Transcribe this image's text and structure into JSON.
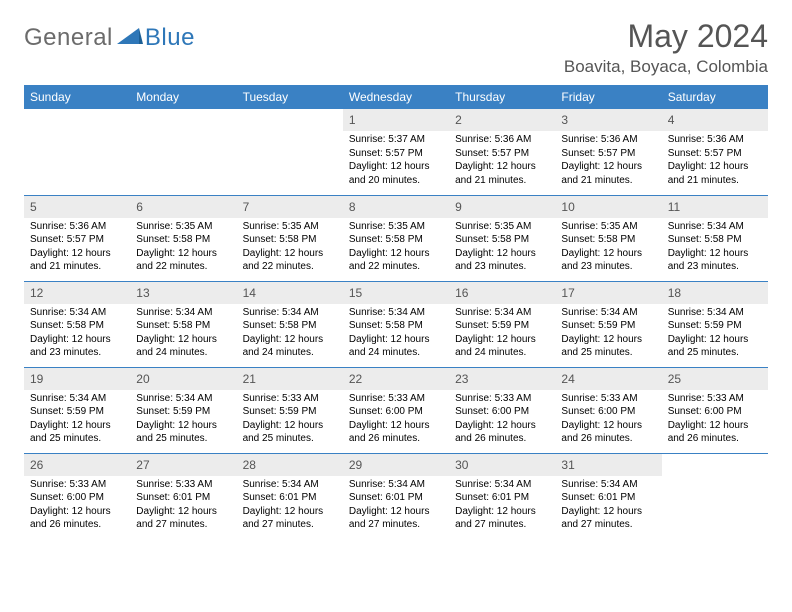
{
  "brand": {
    "general": "General",
    "blue": "Blue"
  },
  "title": "May 2024",
  "location": "Boavita, Boyaca, Colombia",
  "theme": {
    "header_bg": "#3a81c4",
    "header_text": "#ffffff",
    "daynum_bg": "#ececec",
    "daynum_text": "#555555",
    "rule_color": "#3a81c4",
    "title_color": "#555555",
    "logo_general_color": "#6b6b6b",
    "logo_blue_color": "#2e77b8"
  },
  "weekdays": [
    "Sunday",
    "Monday",
    "Tuesday",
    "Wednesday",
    "Thursday",
    "Friday",
    "Saturday"
  ],
  "weeks": [
    [
      null,
      null,
      null,
      {
        "n": "1",
        "sr": "5:37 AM",
        "ss": "5:57 PM",
        "dl": "12 hours and 20 minutes."
      },
      {
        "n": "2",
        "sr": "5:36 AM",
        "ss": "5:57 PM",
        "dl": "12 hours and 21 minutes."
      },
      {
        "n": "3",
        "sr": "5:36 AM",
        "ss": "5:57 PM",
        "dl": "12 hours and 21 minutes."
      },
      {
        "n": "4",
        "sr": "5:36 AM",
        "ss": "5:57 PM",
        "dl": "12 hours and 21 minutes."
      }
    ],
    [
      {
        "n": "5",
        "sr": "5:36 AM",
        "ss": "5:57 PM",
        "dl": "12 hours and 21 minutes."
      },
      {
        "n": "6",
        "sr": "5:35 AM",
        "ss": "5:58 PM",
        "dl": "12 hours and 22 minutes."
      },
      {
        "n": "7",
        "sr": "5:35 AM",
        "ss": "5:58 PM",
        "dl": "12 hours and 22 minutes."
      },
      {
        "n": "8",
        "sr": "5:35 AM",
        "ss": "5:58 PM",
        "dl": "12 hours and 22 minutes."
      },
      {
        "n": "9",
        "sr": "5:35 AM",
        "ss": "5:58 PM",
        "dl": "12 hours and 23 minutes."
      },
      {
        "n": "10",
        "sr": "5:35 AM",
        "ss": "5:58 PM",
        "dl": "12 hours and 23 minutes."
      },
      {
        "n": "11",
        "sr": "5:34 AM",
        "ss": "5:58 PM",
        "dl": "12 hours and 23 minutes."
      }
    ],
    [
      {
        "n": "12",
        "sr": "5:34 AM",
        "ss": "5:58 PM",
        "dl": "12 hours and 23 minutes."
      },
      {
        "n": "13",
        "sr": "5:34 AM",
        "ss": "5:58 PM",
        "dl": "12 hours and 24 minutes."
      },
      {
        "n": "14",
        "sr": "5:34 AM",
        "ss": "5:58 PM",
        "dl": "12 hours and 24 minutes."
      },
      {
        "n": "15",
        "sr": "5:34 AM",
        "ss": "5:58 PM",
        "dl": "12 hours and 24 minutes."
      },
      {
        "n": "16",
        "sr": "5:34 AM",
        "ss": "5:59 PM",
        "dl": "12 hours and 24 minutes."
      },
      {
        "n": "17",
        "sr": "5:34 AM",
        "ss": "5:59 PM",
        "dl": "12 hours and 25 minutes."
      },
      {
        "n": "18",
        "sr": "5:34 AM",
        "ss": "5:59 PM",
        "dl": "12 hours and 25 minutes."
      }
    ],
    [
      {
        "n": "19",
        "sr": "5:34 AM",
        "ss": "5:59 PM",
        "dl": "12 hours and 25 minutes."
      },
      {
        "n": "20",
        "sr": "5:34 AM",
        "ss": "5:59 PM",
        "dl": "12 hours and 25 minutes."
      },
      {
        "n": "21",
        "sr": "5:33 AM",
        "ss": "5:59 PM",
        "dl": "12 hours and 25 minutes."
      },
      {
        "n": "22",
        "sr": "5:33 AM",
        "ss": "6:00 PM",
        "dl": "12 hours and 26 minutes."
      },
      {
        "n": "23",
        "sr": "5:33 AM",
        "ss": "6:00 PM",
        "dl": "12 hours and 26 minutes."
      },
      {
        "n": "24",
        "sr": "5:33 AM",
        "ss": "6:00 PM",
        "dl": "12 hours and 26 minutes."
      },
      {
        "n": "25",
        "sr": "5:33 AM",
        "ss": "6:00 PM",
        "dl": "12 hours and 26 minutes."
      }
    ],
    [
      {
        "n": "26",
        "sr": "5:33 AM",
        "ss": "6:00 PM",
        "dl": "12 hours and 26 minutes."
      },
      {
        "n": "27",
        "sr": "5:33 AM",
        "ss": "6:01 PM",
        "dl": "12 hours and 27 minutes."
      },
      {
        "n": "28",
        "sr": "5:34 AM",
        "ss": "6:01 PM",
        "dl": "12 hours and 27 minutes."
      },
      {
        "n": "29",
        "sr": "5:34 AM",
        "ss": "6:01 PM",
        "dl": "12 hours and 27 minutes."
      },
      {
        "n": "30",
        "sr": "5:34 AM",
        "ss": "6:01 PM",
        "dl": "12 hours and 27 minutes."
      },
      {
        "n": "31",
        "sr": "5:34 AM",
        "ss": "6:01 PM",
        "dl": "12 hours and 27 minutes."
      },
      null
    ]
  ],
  "labels": {
    "sunrise": "Sunrise:",
    "sunset": "Sunset:",
    "daylight": "Daylight:"
  }
}
